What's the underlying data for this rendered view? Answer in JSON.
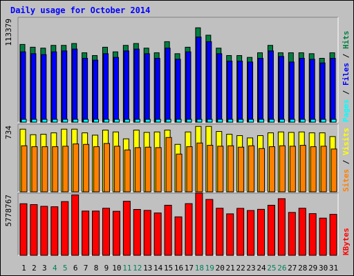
{
  "title": "Daily usage for October 2014",
  "colors": {
    "hits": "#008040",
    "files": "#0000ff",
    "pages": "#00ffff",
    "visits": "#ffff00",
    "sites": "#ff8000",
    "kbytes": "#ff0000",
    "weekend_label": "#00805c",
    "text": "#000000",
    "panel_bg": "#c0c0c0"
  },
  "chart_data": [
    {
      "type": "bar",
      "panel": "top",
      "axis_label": "113379",
      "ylim": [
        0,
        113379
      ],
      "x": [
        1,
        2,
        3,
        4,
        5,
        6,
        7,
        8,
        9,
        10,
        11,
        12,
        13,
        14,
        15,
        16,
        17,
        18,
        19,
        20,
        21,
        22,
        23,
        24,
        25,
        26,
        27,
        28,
        29,
        30,
        31
      ],
      "legend": [
        "Pages",
        "/",
        "Files",
        "/",
        "Hits"
      ],
      "series": [
        {
          "name": "Hits",
          "values": [
            84000,
            81000,
            80000,
            83000,
            83000,
            85000,
            75000,
            72000,
            81000,
            76000,
            83000,
            85000,
            80000,
            75000,
            87000,
            74000,
            81000,
            102000,
            94000,
            80000,
            72000,
            72000,
            70000,
            75000,
            83000,
            75000,
            75000,
            75000,
            74000,
            69000,
            75000
          ]
        },
        {
          "name": "Files",
          "values": [
            76000,
            74000,
            73000,
            76000,
            77000,
            79000,
            69000,
            67000,
            74000,
            70000,
            77000,
            79000,
            74000,
            69000,
            80000,
            68000,
            76000,
            92000,
            87000,
            74000,
            66000,
            66000,
            65000,
            69000,
            77000,
            71000,
            65000,
            69000,
            68000,
            64000,
            69000
          ]
        },
        {
          "name": "Pages",
          "values": [
            3000,
            3000,
            3000,
            3000,
            3000,
            3000,
            3000,
            3000,
            3000,
            3000,
            3000,
            3000,
            3000,
            3000,
            3000,
            3000,
            3000,
            3000,
            3000,
            3000,
            3000,
            3000,
            3000,
            3000,
            3000,
            3000,
            3000,
            3000,
            3000,
            3000,
            3000
          ]
        }
      ]
    },
    {
      "type": "bar",
      "panel": "middle",
      "axis_label": "734",
      "ylim": [
        0,
        734
      ],
      "x": [
        1,
        2,
        3,
        4,
        5,
        6,
        7,
        8,
        9,
        10,
        11,
        12,
        13,
        14,
        15,
        16,
        17,
        18,
        19,
        20,
        21,
        22,
        23,
        24,
        25,
        26,
        27,
        28,
        29,
        30,
        31
      ],
      "legend": [
        "Sites",
        "/",
        "Visits"
      ],
      "series": [
        {
          "name": "Visits",
          "values": [
            680,
            620,
            625,
            640,
            680,
            680,
            640,
            615,
            670,
            650,
            575,
            670,
            645,
            650,
            670,
            515,
            650,
            710,
            710,
            655,
            625,
            610,
            585,
            610,
            640,
            650,
            645,
            650,
            640,
            640,
            600
          ]
        },
        {
          "name": "Sites",
          "values": [
            500,
            490,
            490,
            490,
            495,
            520,
            515,
            490,
            525,
            495,
            455,
            480,
            485,
            480,
            590,
            410,
            490,
            530,
            505,
            495,
            500,
            485,
            500,
            470,
            490,
            500,
            495,
            505,
            490,
            495,
            465
          ]
        }
      ]
    },
    {
      "type": "bar",
      "panel": "bottom",
      "axis_label": "5778767",
      "ylim": [
        0,
        5778767
      ],
      "x": [
        1,
        2,
        3,
        4,
        5,
        6,
        7,
        8,
        9,
        10,
        11,
        12,
        13,
        14,
        15,
        16,
        17,
        18,
        19,
        20,
        21,
        22,
        23,
        24,
        25,
        26,
        27,
        28,
        29,
        30,
        31
      ],
      "legend": [
        "KBytes"
      ],
      "series": [
        {
          "name": "KBytes",
          "values": [
            4800000,
            4720000,
            4560000,
            4520000,
            5000000,
            5620000,
            4120000,
            4120000,
            4380000,
            4100000,
            5030000,
            4270000,
            4180000,
            3940000,
            4660000,
            3580000,
            4810000,
            5790000,
            5200000,
            4380000,
            3860000,
            4370000,
            4170000,
            4280000,
            4660000,
            5270000,
            3990000,
            4380000,
            3880000,
            3460000,
            3810000
          ]
        }
      ]
    }
  ]
}
